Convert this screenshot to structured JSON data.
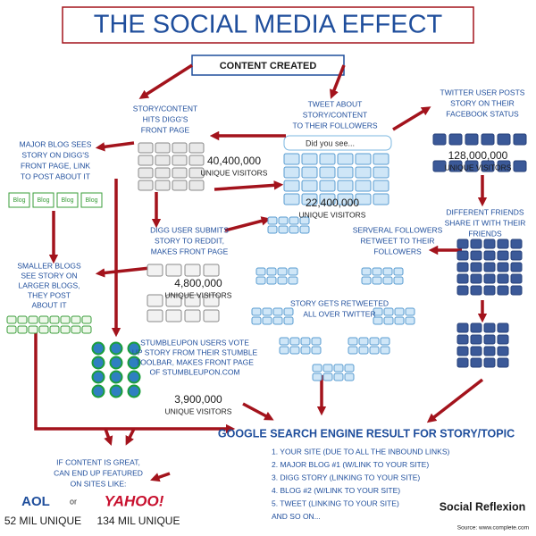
{
  "header": {
    "title": "THE SOCIAL MEDIA EFFECT"
  },
  "nodes": {
    "content_created": "CONTENT CREATED",
    "digg": {
      "label": [
        "STORY/CONTENT",
        "HITS DIGG'S",
        "FRONT PAGE"
      ],
      "visitors": "40,400,000",
      "unit": "UNIQUE VISITORS"
    },
    "tweet": {
      "label": [
        "TWEET ABOUT",
        "STORY/CONTENT",
        "TO THEIR FOLLOWERS"
      ],
      "bubble": "Did you see...",
      "visitors": "22,400,000",
      "unit": "UNIQUE VISITORS"
    },
    "facebook": {
      "label": [
        "TWITTER USER POSTS",
        "STORY ON THEIR",
        "FACEBOOK STATUS"
      ],
      "visitors": "128,000,000",
      "unit": "UNIQUE VISITORS"
    },
    "major_blog": {
      "label": [
        "MAJOR BLOG SEES",
        "STORY ON DIGG'S",
        "FRONT PAGE, LINK",
        "TO POST ABOUT IT"
      ],
      "icon": "Blog"
    },
    "friends": {
      "label": [
        "DIFFERENT FRIENDS",
        "SHARE IT WITH THEIR",
        "FRIENDS"
      ]
    },
    "reddit": {
      "label": [
        "DIGG USER SUBMITS",
        "STORY TO REDDIT,",
        "MAKES FRONT PAGE"
      ],
      "visitors": "4,800,000",
      "unit": "UNIQUE VISITORS"
    },
    "retweet": {
      "label": [
        "SERVERAL FOLLOWERS",
        "RETWEET TO THEIR",
        "FOLLOWERS"
      ]
    },
    "smaller_blogs": {
      "label": [
        "SMALLER BLOGS",
        "SEE STORY ON",
        "LARGER BLOGS,",
        "THEY POST",
        "ABOUT IT"
      ]
    },
    "all_over": {
      "label": [
        "STORY GETS RETWEETED",
        "ALL OVER TWITTER"
      ]
    },
    "stumble": {
      "label": [
        "STUMBLEUPON USERS VOTE",
        "UP STORY FROM THEIR STUMBLE",
        "TOOLBAR, MAKES FRONT PAGE",
        "OF STUMBLEUPON.COM"
      ],
      "visitors": "3,900,000",
      "unit": "UNIQUE VISITORS"
    },
    "google": {
      "title": "GOOGLE SEARCH ENGINE RESULT FOR STORY/TOPIC",
      "items": [
        "1. YOUR SITE (DUE TO ALL THE INBOUND LINKS)",
        "2. MAJOR BLOG #1 (W/LINK TO YOUR SITE)",
        "3. DIGG STORY (LINKING TO YOUR SITE)",
        "4. BLOG #2 (W/LINK TO YOUR SITE)",
        "5. TWEET (LINKING TO YOUR SITE)",
        "AND SO ON..."
      ]
    },
    "featured": {
      "label": [
        "IF CONTENT IS GREAT,",
        "CAN END UP FEATURED",
        "ON SITES LIKE:"
      ],
      "aol": "AOL",
      "or": "or",
      "yahoo": "YAHOO!",
      "aol_visitors": "52 MIL UNIQUE",
      "yahoo_visitors": "134 MIL UNIQUE"
    }
  },
  "footer": {
    "brand": "Social Reflexion",
    "source": "Source: www.complete.com"
  }
}
